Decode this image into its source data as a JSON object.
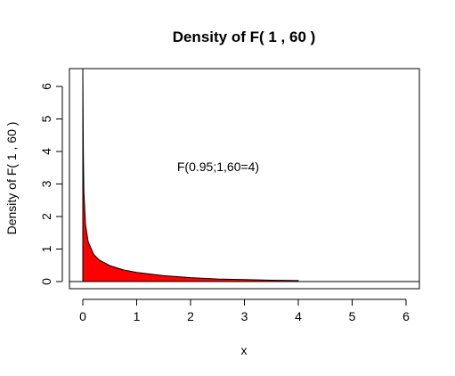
{
  "chart_data": {
    "type": "area",
    "title": "Density of F( 1 , 60 )",
    "xlabel": "x",
    "ylabel": "Density of F( 1 , 60 )",
    "xlim": [
      0,
      6
    ],
    "ylim": [
      0,
      6
    ],
    "x_ticks": [
      "0",
      "1",
      "2",
      "3",
      "4",
      "5",
      "6"
    ],
    "y_ticks": [
      "0",
      "1",
      "2",
      "3",
      "4",
      "5",
      "6"
    ],
    "grid": false,
    "annotation": "F(0.95;1,60=4)",
    "fill_color": "#ff0000",
    "density_points": {
      "x": [
        0.01,
        0.02,
        0.05,
        0.1,
        0.2,
        0.3,
        0.5,
        0.75,
        1.0,
        1.5,
        2.0,
        2.5,
        3.0,
        3.5,
        4.0
      ],
      "y": [
        3.94,
        2.78,
        1.75,
        1.22,
        0.84,
        0.67,
        0.49,
        0.36,
        0.28,
        0.18,
        0.12,
        0.08,
        0.06,
        0.04,
        0.03
      ]
    },
    "shaded_range": [
      0,
      4
    ]
  }
}
